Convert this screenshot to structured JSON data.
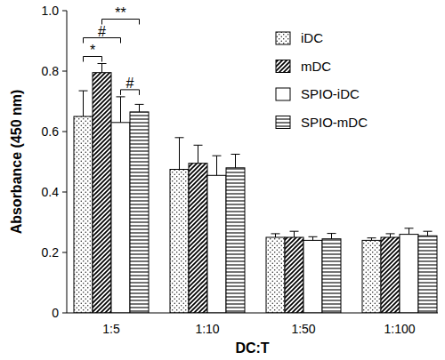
{
  "chart_data": {
    "type": "bar",
    "x_label": "DC:T",
    "y_label": "Absorbance (450 nm)",
    "categories": [
      "1:5",
      "1:10",
      "1:50",
      "1:100"
    ],
    "series": [
      {
        "name": "iDC",
        "color": "#ffffff",
        "marker": "dots",
        "values": [
          0.65,
          0.475,
          0.25,
          0.24
        ],
        "errors": [
          0.085,
          0.105,
          0.012,
          0.008
        ]
      },
      {
        "name": "mDC",
        "color": "#ffffff",
        "marker": "diagonal",
        "values": [
          0.795,
          0.495,
          0.25,
          0.25
        ],
        "errors": [
          0.03,
          0.06,
          0.02,
          0.012
        ]
      },
      {
        "name": "SPIO-iDC",
        "color": "#ffffff",
        "marker": "none",
        "values": [
          0.63,
          0.455,
          0.24,
          0.26
        ],
        "errors": [
          0.085,
          0.065,
          0.012,
          0.02
        ]
      },
      {
        "name": "SPIO-mDC",
        "color": "#ffffff",
        "marker": "horizontal",
        "values": [
          0.665,
          0.48,
          0.245,
          0.255
        ],
        "errors": [
          0.025,
          0.045,
          0.018,
          0.015
        ]
      }
    ],
    "ylim": [
      0,
      1
    ],
    "yticks": [
      0,
      0.2,
      0.4,
      0.6,
      0.8,
      {
        "value": 1,
        "label": "1.0"
      }
    ],
    "grid": false,
    "legend": "upper right",
    "annotations": [
      {
        "text": "*",
        "category": 0,
        "from": 0,
        "to": 1
      },
      {
        "text": "#",
        "category": 0,
        "from": 0,
        "to": 2
      },
      {
        "text": "**",
        "category": 0,
        "from": 1,
        "to": 3
      },
      {
        "text": "#",
        "category": 0,
        "from": 2,
        "to": 3
      }
    ]
  }
}
